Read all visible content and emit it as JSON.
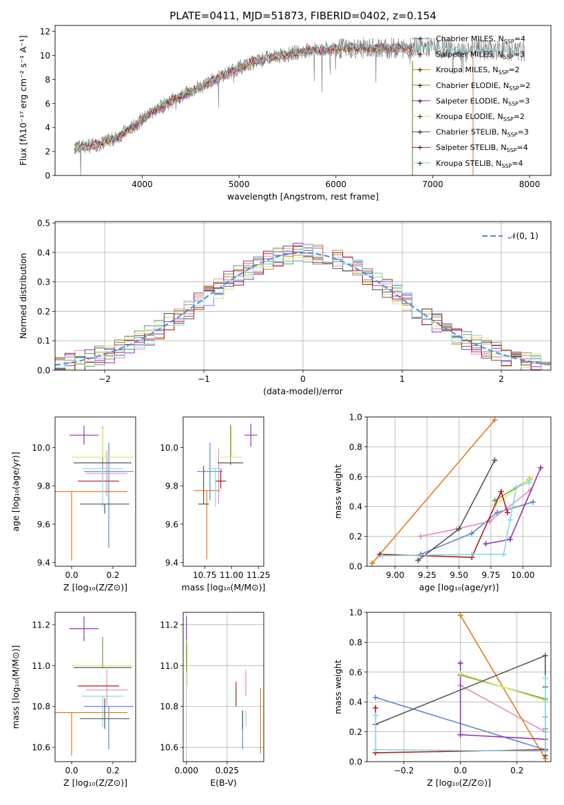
{
  "title": "PLATE=0411, MJD=51873, FIBERID=0402, z=0.154",
  "colors": {
    "chabrier_miles": "#5b86d4",
    "salpeter_miles": "#e688c0",
    "kroupa_miles": "#e07b1a",
    "chabrier_elodie": "#6c9d47",
    "salpeter_elodie": "#9331b5",
    "kroupa_elodie": "#d9e86a",
    "chabrier_stelib": "#555555",
    "salpeter_stelib": "#b1171f",
    "kroupa_stelib": "#86dadd",
    "gaussian": "#5b8ed6"
  },
  "chart_data": [
    {
      "id": "spectrum",
      "type": "line",
      "xlabel": "wavelength [Angstrom, rest frame]",
      "ylabel": "Flux [fλ10⁻¹⁷ erg cm⁻² s⁻¹ A⁻¹]",
      "xlim": [
        3100,
        8220
      ],
      "ylim": [
        0,
        12.5
      ],
      "xticks": [
        4000,
        5000,
        6000,
        7000,
        8000
      ],
      "yticks": [
        0,
        2,
        4,
        6,
        8,
        10,
        12
      ],
      "grid": false,
      "legend_position": "top-right",
      "legend": [
        {
          "label": "Chabrier MILES, N",
          "sub": "SSP",
          "suffix": "=4",
          "color": "chabrier_miles"
        },
        {
          "label": "Salpeter MILES, N",
          "sub": "SSP",
          "suffix": "=3",
          "color": "salpeter_miles"
        },
        {
          "label": "Kroupa MILES, N",
          "sub": "SSP",
          "suffix": "=2",
          "color": "kroupa_miles"
        },
        {
          "label": "Chabrier ELODIE, N",
          "sub": "SSP",
          "suffix": "=2",
          "color": "chabrier_elodie"
        },
        {
          "label": "Salpeter ELODIE, N",
          "sub": "SSP",
          "suffix": "=3",
          "color": "salpeter_elodie"
        },
        {
          "label": "Kroupa ELODIE, N",
          "sub": "SSP",
          "suffix": "=2",
          "color": "kroupa_elodie"
        },
        {
          "label": "Chabrier STELIB, N",
          "sub": "SSP",
          "suffix": "=3",
          "color": "chabrier_stelib"
        },
        {
          "label": "Salpeter STELIB, N",
          "sub": "SSP",
          "suffix": "=4",
          "color": "salpeter_stelib"
        },
        {
          "label": "Kroupa STELIB, N",
          "sub": "SSP",
          "suffix": "=4",
          "color": "kroupa_stelib"
        }
      ],
      "data_series": {
        "color": "#808080",
        "x": [
          3300,
          3500,
          3700,
          3900,
          4100,
          4300,
          4500,
          4700,
          4900,
          5100,
          5300,
          5500,
          5700,
          5900,
          6100,
          6300,
          6500,
          6700,
          6900,
          7100,
          7300,
          7500,
          7700,
          7900
        ],
        "y": [
          2.3,
          2.5,
          3.0,
          4.0,
          5.3,
          6.2,
          7.0,
          7.8,
          8.6,
          9.3,
          9.8,
          10.1,
          10.4,
          10.5,
          10.6,
          10.6,
          10.6,
          10.6,
          10.7,
          10.6,
          10.5,
          10.5,
          10.4,
          10.3
        ]
      },
      "model_series": {
        "color": "kroupa_stelib",
        "x": [
          3300,
          3500,
          3700,
          3900,
          4100,
          4300,
          4500,
          4700,
          4900,
          5100,
          5300,
          5500,
          5700,
          5900,
          6100,
          6300,
          6500,
          6700,
          6900,
          7100,
          7300,
          7500,
          7700,
          7900
        ],
        "y": [
          2.35,
          2.5,
          3.0,
          4.0,
          5.3,
          6.2,
          7.0,
          7.8,
          8.6,
          9.3,
          9.8,
          10.1,
          10.4,
          10.5,
          10.6,
          10.6,
          10.6,
          10.6,
          10.7,
          10.6,
          10.5,
          10.5,
          10.4,
          10.3
        ]
      }
    },
    {
      "id": "residuals",
      "type": "line",
      "xlabel": "(data-model)/error",
      "ylabel": "Normed distribution",
      "xlim": [
        -2.5,
        2.5
      ],
      "ylim": [
        0,
        0.505
      ],
      "xticks": [
        -2,
        -1,
        0,
        1,
        2
      ],
      "yticks": [
        0.0,
        0.1,
        0.2,
        0.3,
        0.4,
        0.5
      ],
      "grid": true,
      "legend_position": "top-right",
      "legend": [
        {
          "label": "𝒩(0, 1)",
          "color": "gaussian",
          "style": "dashed"
        }
      ],
      "bin_width": 0.1,
      "bin_start": -2.5,
      "gaussian": {
        "mean": 0,
        "sigma": 1
      }
    },
    {
      "id": "z-vs-age",
      "type": "scatter",
      "xlabel": "Z [log₁₀(Z/Z⊙)]",
      "ylabel": "age  [log₁₀(age/yr)]",
      "xlim": [
        -0.08,
        0.31
      ],
      "ylim": [
        9.38,
        10.16
      ],
      "xticks": [
        0.0,
        0.2
      ],
      "yticks": [
        9.4,
        9.6,
        9.8,
        10.0
      ],
      "grid": false,
      "points": [
        {
          "c": "chabrier_miles",
          "x": 0.18,
          "y": 9.875,
          "xe": 0.12,
          "ye_lo": 0.4,
          "ye_hi": 0.15
        },
        {
          "c": "salpeter_miles",
          "x": 0.17,
          "y": 9.865,
          "xe": 0.1,
          "ye_lo": 0.12,
          "ye_hi": 0.12
        },
        {
          "c": "kroupa_miles",
          "x": 0.0,
          "y": 9.77,
          "xe": 0.27,
          "ye_lo": 0.36,
          "ye_hi": 0.0
        },
        {
          "c": "chabrier_elodie",
          "x": 0.15,
          "y": 9.88,
          "xe": 0.0,
          "ye_lo": 0.05,
          "ye_hi": 0.23
        },
        {
          "c": "salpeter_elodie",
          "x": 0.06,
          "y": 10.065,
          "xe": 0.07,
          "ye_lo": 0.05,
          "ye_hi": 0.05
        },
        {
          "c": "kroupa_elodie",
          "x": 0.15,
          "y": 9.95,
          "xe": 0.15,
          "ye_lo": 0.0,
          "ye_hi": 0.15
        },
        {
          "c": "chabrier_stelib",
          "x": 0.15,
          "y": 9.92,
          "xe": 0.14,
          "ye_lo": 0.0,
          "ye_hi": 0.0
        },
        {
          "c": "salpeter_stelib",
          "x": 0.13,
          "y": 9.825,
          "xe": 0.1,
          "ye_lo": 0.0,
          "ye_hi": 0.0
        },
        {
          "c": "kroupa_stelib",
          "x": 0.15,
          "y": 9.89,
          "xe": 0.1,
          "ye_lo": 0.2,
          "ye_hi": 0.0
        },
        {
          "c": "chabrier_stelib",
          "x": 0.16,
          "y": 9.705,
          "xe": 0.12,
          "ye_lo": 0.05,
          "ye_hi": 0.0
        }
      ]
    },
    {
      "id": "mass-vs-age",
      "type": "scatter",
      "xlabel": "mass [log₁₀(M/M⊙)]",
      "ylabel": "",
      "xlim": [
        10.55,
        11.3
      ],
      "ylim": [
        9.38,
        10.16
      ],
      "xticks": [
        10.75,
        11.0,
        11.25
      ],
      "yticks": [
        9.4,
        9.6,
        9.8,
        10.0
      ],
      "grid": false,
      "points": [
        {
          "c": "chabrier_miles",
          "x": 10.8,
          "y": 9.875,
          "xe": 0.12,
          "ye_lo": 0.15,
          "ye_hi": 0.15
        },
        {
          "c": "salpeter_miles",
          "x": 10.88,
          "y": 9.865,
          "xe": 0.0,
          "ye_lo": 0.16,
          "ye_hi": 0.13
        },
        {
          "c": "kroupa_miles",
          "x": 10.77,
          "y": 9.775,
          "xe": 0.12,
          "ye_lo": 0.36,
          "ye_hi": 0.0
        },
        {
          "c": "chabrier_elodie",
          "x": 10.99,
          "y": 9.94,
          "xe": 0.0,
          "ye_lo": 0.03,
          "ye_hi": 0.18
        },
        {
          "c": "salpeter_elodie",
          "x": 11.18,
          "y": 10.065,
          "xe": 0.06,
          "ye_lo": 0.06,
          "ye_hi": 0.06
        },
        {
          "c": "kroupa_elodie",
          "x": 11.0,
          "y": 9.95,
          "xe": 0.1,
          "ye_lo": 0.0,
          "ye_hi": 0.16
        },
        {
          "c": "chabrier_stelib",
          "x": 10.99,
          "y": 9.92,
          "xe": 0.12,
          "ye_lo": 0.01,
          "ye_hi": 0.0
        },
        {
          "c": "salpeter_stelib",
          "x": 10.9,
          "y": 9.825,
          "xe": 0.05,
          "ye_lo": 0.04,
          "ye_hi": 0.06
        },
        {
          "c": "kroupa_stelib",
          "x": 10.85,
          "y": 9.89,
          "xe": 0.07,
          "ye_lo": 0.2,
          "ye_hi": 0.0
        },
        {
          "c": "chabrier_stelib",
          "x": 10.74,
          "y": 9.705,
          "xe": 0.05,
          "ye_lo": 0.0,
          "ye_hi": 0.2
        }
      ]
    },
    {
      "id": "age-vs-weight",
      "type": "line",
      "xlabel": "age  [log₁₀(age/yr)]",
      "ylabel": "mass weight",
      "xlim": [
        8.78,
        10.22
      ],
      "ylim": [
        0,
        1.0
      ],
      "xticks": [
        9.0,
        9.25,
        9.5,
        9.75,
        10.0
      ],
      "yticks": [
        0.0,
        0.2,
        0.4,
        0.6,
        0.8,
        1.0
      ],
      "grid": true,
      "series": [
        {
          "c": "chabrier_miles",
          "x": [
            9.2,
            9.6,
            9.8,
            10.08
          ],
          "y": [
            0.08,
            0.22,
            0.36,
            0.43
          ]
        },
        {
          "c": "salpeter_miles",
          "x": [
            9.2,
            9.48,
            9.74,
            10.06
          ],
          "y": [
            0.2,
            0.25,
            0.3,
            0.51
          ]
        },
        {
          "c": "kroupa_miles",
          "x": [
            8.82,
            9.78
          ],
          "y": [
            0.02,
            0.98
          ]
        },
        {
          "c": "chabrier_elodie",
          "x": [
            9.78,
            10.05
          ],
          "y": [
            0.44,
            0.58
          ]
        },
        {
          "c": "salpeter_elodie",
          "x": [
            9.71,
            9.9,
            10.14
          ],
          "y": [
            0.15,
            0.18,
            0.66
          ]
        },
        {
          "c": "kroupa_elodie",
          "x": [
            9.78,
            10.06
          ],
          "y": [
            0.41,
            0.59
          ]
        },
        {
          "c": "chabrier_stelib",
          "x": [
            9.18,
            9.5,
            9.78
          ],
          "y": [
            0.04,
            0.25,
            0.71
          ]
        },
        {
          "c": "salpeter_stelib",
          "x": [
            8.88,
            9.6,
            9.83,
            9.88
          ],
          "y": [
            0.08,
            0.06,
            0.5,
            0.36
          ]
        },
        {
          "c": "kroupa_stelib",
          "x": [
            8.9,
            9.6,
            9.85,
            9.9,
            9.95,
            10.05
          ],
          "y": [
            0.07,
            0.08,
            0.08,
            0.31,
            0.53,
            0.56
          ]
        }
      ]
    },
    {
      "id": "z-vs-mass",
      "type": "scatter",
      "xlabel": "Z [log₁₀(Z/Z⊙)]",
      "ylabel": "mass [log₁₀(M/M⊙)]",
      "xlim": [
        -0.08,
        0.31
      ],
      "ylim": [
        10.53,
        11.26
      ],
      "xticks": [
        0.0,
        0.2
      ],
      "yticks": [
        10.6,
        10.8,
        11.0,
        11.2
      ],
      "grid": false,
      "points": [
        {
          "c": "chabrier_miles",
          "x": 0.18,
          "y": 10.8,
          "xe": 0.12,
          "ye_lo": 0.21,
          "ye_hi": 0.0
        },
        {
          "c": "salpeter_miles",
          "x": 0.17,
          "y": 10.88,
          "xe": 0.1,
          "ye_lo": 0.08,
          "ye_hi": 0.1
        },
        {
          "c": "kroupa_miles",
          "x": 0.0,
          "y": 10.77,
          "xe": 0.27,
          "ye_lo": 0.21,
          "ye_hi": 0.0
        },
        {
          "c": "chabrier_elodie",
          "x": 0.15,
          "y": 10.99,
          "xe": 0.0,
          "ye_lo": 0.0,
          "ye_hi": 0.15
        },
        {
          "c": "salpeter_elodie",
          "x": 0.06,
          "y": 11.18,
          "xe": 0.07,
          "ye_lo": 0.06,
          "ye_hi": 0.06
        },
        {
          "c": "kroupa_elodie",
          "x": 0.15,
          "y": 11.0,
          "xe": 0.15,
          "ye_lo": 0.0,
          "ye_hi": 0.0
        },
        {
          "c": "chabrier_stelib",
          "x": 0.15,
          "y": 10.99,
          "xe": 0.14,
          "ye_lo": 0.0,
          "ye_hi": 0.0
        },
        {
          "c": "salpeter_stelib",
          "x": 0.13,
          "y": 10.9,
          "xe": 0.1,
          "ye_lo": 0.0,
          "ye_hi": 0.0
        },
        {
          "c": "kroupa_stelib",
          "x": 0.15,
          "y": 10.85,
          "xe": 0.1,
          "ye_lo": 0.15,
          "ye_hi": 0.0
        },
        {
          "c": "chabrier_stelib",
          "x": 0.16,
          "y": 10.74,
          "xe": 0.12,
          "ye_lo": 0.05,
          "ye_hi": 0.1
        }
      ]
    },
    {
      "id": "ebv-vs-mass",
      "type": "scatter",
      "xlabel": "E(B-V)",
      "ylabel": "",
      "xlim": [
        -0.002,
        0.0475
      ],
      "ylim": [
        10.53,
        11.26
      ],
      "xticks": [
        0.0,
        0.025
      ],
      "xtick_labels": [
        "0.000",
        "0.025"
      ],
      "yticks": [
        10.6,
        10.8,
        11.0,
        11.2
      ],
      "grid": true,
      "points": [
        {
          "c": "chabrier_miles",
          "x": 0.0345,
          "y": 10.78,
          "ye_lo": 0.19,
          "ye_hi": 0.0
        },
        {
          "c": "salpeter_miles",
          "x": 0.0365,
          "y": 10.9,
          "ye_lo": 0.05,
          "ye_hi": 0.08
        },
        {
          "c": "kroupa_miles",
          "x": 0.0455,
          "y": 10.72,
          "ye_lo": 0.15,
          "ye_hi": 0.17
        },
        {
          "c": "chabrier_elodie",
          "x": 0.0,
          "y": 11.02,
          "ye_lo": 0.05,
          "ye_hi": 0.12
        },
        {
          "c": "salpeter_elodie",
          "x": 0.0,
          "y": 11.18,
          "ye_lo": 0.05,
          "ye_hi": 0.06
        },
        {
          "c": "kroupa_elodie",
          "x": 0.0005,
          "y": 11.0,
          "ye_lo": 0.1,
          "ye_hi": 0.1
        },
        {
          "c": "chabrier_stelib",
          "x": 0.0345,
          "y": 10.78,
          "ye_lo": 0.09,
          "ye_hi": 0.0
        },
        {
          "c": "salpeter_stelib",
          "x": 0.0305,
          "y": 10.84,
          "ye_lo": 0.04,
          "ye_hi": 0.08
        },
        {
          "c": "kroupa_stelib",
          "x": 0.0365,
          "y": 10.78,
          "ye_lo": 0.08,
          "ye_hi": 0.0
        }
      ]
    },
    {
      "id": "z-vs-weight",
      "type": "line",
      "xlabel": "Z [log₁₀(Z/Z⊙)]",
      "ylabel": "mass weight",
      "xlim": [
        -0.33,
        0.32
      ],
      "ylim": [
        0,
        1.0
      ],
      "xticks": [
        -0.2,
        0.0,
        0.2
      ],
      "yticks": [
        0.0,
        0.2,
        0.4,
        0.6,
        0.8,
        1.0
      ],
      "grid": true,
      "series": [
        {
          "c": "chabrier_miles",
          "x": [
            -0.3,
            0.3,
            0.3
          ],
          "y": [
            0.43,
            0.08,
            0.22
          ]
        },
        {
          "c": "salpeter_miles",
          "x": [
            0.0,
            0.3,
            0.3
          ],
          "y": [
            0.51,
            0.2,
            0.3
          ]
        },
        {
          "c": "kroupa_miles",
          "x": [
            0.0,
            0.3
          ],
          "y": [
            0.98,
            0.02
          ]
        },
        {
          "c": "chabrier_elodie",
          "x": [
            0.0,
            0.3
          ],
          "y": [
            0.58,
            0.42
          ]
        },
        {
          "c": "salpeter_elodie",
          "x": [
            0.0,
            0.0,
            0.3,
            0.3
          ],
          "y": [
            0.66,
            0.18,
            0.15,
            0.08
          ]
        },
        {
          "c": "kroupa_elodie",
          "x": [
            0.0,
            0.3
          ],
          "y": [
            0.59,
            0.41
          ]
        },
        {
          "c": "chabrier_stelib",
          "x": [
            -0.3,
            0.3,
            0.3,
            0.3
          ],
          "y": [
            0.25,
            0.71,
            0.5,
            0.04
          ]
        },
        {
          "c": "salpeter_stelib",
          "x": [
            -0.3,
            -0.3,
            0.3
          ],
          "y": [
            0.36,
            0.06,
            0.08
          ]
        },
        {
          "c": "kroupa_stelib",
          "x": [
            -0.3,
            -0.3,
            0.3,
            0.3
          ],
          "y": [
            0.31,
            0.08,
            0.07,
            0.56
          ]
        }
      ]
    }
  ]
}
